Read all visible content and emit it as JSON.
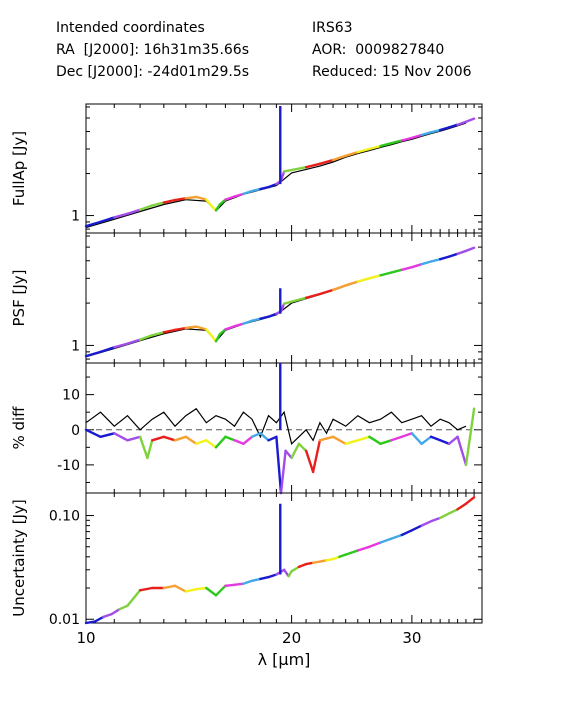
{
  "header": {
    "coords_title": "Intended coordinates",
    "ra": "RA  [J2000]: 16h31m35.66s",
    "dec": "Dec [J2000]: -24d01m29.5s",
    "object": "IRS63",
    "aor": "AOR:  0009827840",
    "reduced": "Reduced: 15 Nov 2006"
  },
  "chart_data": {
    "type": "line",
    "xlabel": "λ [μm]",
    "x_scale": "log",
    "xlim": [
      10,
      38
    ],
    "x_ticks": [
      10,
      20,
      30
    ],
    "x_tick_labels": [
      "10",
      "20",
      "30"
    ],
    "segment_colors": [
      "#1a1ad0",
      "#a24de8",
      "#7fd23c",
      "#e8201c",
      "#f5a030",
      "#f2f21c",
      "#2cc81c",
      "#e838e0",
      "#42a8e8"
    ],
    "panels": [
      {
        "name": "fullap",
        "ylabel": "FullAp [Jy]",
        "y_scale": "log",
        "ylim": [
          0.75,
          6.3
        ],
        "y_ticks": [
          1
        ],
        "y_tick_labels": [
          "1"
        ],
        "reference_line": false,
        "spectrum": {
          "x": [
            10.0,
            10.5,
            11.0,
            11.5,
            12.0,
            12.5,
            13.0,
            13.5,
            14.0,
            14.5,
            15.0,
            15.3,
            15.5,
            15.7,
            16.0,
            16.5,
            17.0,
            17.5,
            18.0,
            18.5,
            19.0,
            19.3,
            19.5,
            20.0,
            21.0,
            22.0,
            23.0,
            24.0,
            25.0,
            26.0,
            27.0,
            28.0,
            29.0,
            30.0,
            31.0,
            32.0,
            33.0,
            34.0,
            35.0,
            36.0,
            37.0
          ],
          "y": [
            0.84,
            0.9,
            0.97,
            1.03,
            1.1,
            1.18,
            1.24,
            1.29,
            1.33,
            1.36,
            1.3,
            1.16,
            1.09,
            1.2,
            1.3,
            1.37,
            1.43,
            1.5,
            1.55,
            1.6,
            1.68,
            1.78,
            2.07,
            2.12,
            2.22,
            2.35,
            2.5,
            2.68,
            2.85,
            3.0,
            3.15,
            3.3,
            3.45,
            3.6,
            3.78,
            3.95,
            4.1,
            4.28,
            4.48,
            4.7,
            4.95
          ]
        },
        "spike": {
          "x": 19.25,
          "y": 6.1
        },
        "comparison": {
          "x": [
            10.0,
            11.0,
            12.0,
            13.0,
            14.0,
            15.0,
            15.5,
            16.0,
            17.0,
            18.0,
            19.0,
            20.0,
            21.0,
            22.0,
            23.0,
            24.0,
            25.0,
            26.0,
            27.0,
            28.0,
            29.0,
            30.0,
            31.0,
            32.0,
            33.0,
            34.0,
            35.0,
            36.0
          ],
          "y": [
            0.82,
            0.94,
            1.07,
            1.2,
            1.3,
            1.27,
            1.08,
            1.27,
            1.42,
            1.53,
            1.64,
            2.02,
            2.14,
            2.26,
            2.42,
            2.62,
            2.78,
            2.92,
            3.08,
            3.22,
            3.38,
            3.52,
            3.7,
            3.87,
            4.02,
            4.2,
            4.4,
            4.6
          ]
        }
      },
      {
        "name": "psf",
        "ylabel": "PSF [Jy]",
        "y_scale": "log",
        "ylim": [
          0.75,
          6.3
        ],
        "y_ticks": [
          1
        ],
        "y_tick_labels": [
          "1"
        ],
        "reference_line": false,
        "spectrum": {
          "x": [
            10.0,
            10.5,
            11.0,
            11.5,
            12.0,
            12.5,
            13.0,
            13.5,
            14.0,
            14.5,
            15.0,
            15.3,
            15.5,
            15.7,
            16.0,
            16.5,
            17.0,
            17.5,
            18.0,
            18.5,
            19.0,
            19.3,
            19.5,
            20.0,
            21.0,
            22.0,
            23.0,
            24.0,
            25.0,
            26.0,
            27.0,
            28.0,
            29.0,
            30.0,
            31.0,
            32.0,
            33.0,
            34.0,
            35.0,
            36.0,
            37.0
          ],
          "y": [
            0.84,
            0.9,
            0.97,
            1.03,
            1.1,
            1.18,
            1.24,
            1.29,
            1.33,
            1.36,
            1.3,
            1.16,
            1.07,
            1.2,
            1.3,
            1.37,
            1.43,
            1.5,
            1.55,
            1.6,
            1.68,
            1.75,
            1.98,
            2.05,
            2.18,
            2.32,
            2.48,
            2.67,
            2.85,
            3.0,
            3.15,
            3.3,
            3.45,
            3.6,
            3.78,
            3.95,
            4.1,
            4.28,
            4.48,
            4.7,
            4.95
          ]
        },
        "spike": {
          "x": 19.25,
          "y": 2.55
        },
        "comparison": {
          "x": [
            10.0,
            11.0,
            12.0,
            13.0,
            14.0,
            15.0,
            15.5,
            16.0,
            17.0,
            18.0,
            19.0,
            20.0,
            21.0,
            22.0,
            23.0,
            24.0,
            25.0,
            26.0,
            27.0,
            28.0,
            29.0,
            30.0,
            31.0,
            32.0,
            33.0,
            34.0,
            35.0,
            36.0
          ],
          "y": [
            0.83,
            0.95,
            1.08,
            1.21,
            1.31,
            1.28,
            1.07,
            1.28,
            1.42,
            1.53,
            1.65,
            2.0,
            2.15,
            2.3,
            2.46,
            2.65,
            2.82,
            2.98,
            3.13,
            3.28,
            3.43,
            3.58,
            3.76,
            3.93,
            4.08,
            4.26,
            4.45,
            4.66
          ]
        }
      },
      {
        "name": "diff",
        "ylabel": "% diff",
        "y_scale": "linear",
        "ylim": [
          -18,
          19
        ],
        "y_ticks": [
          10,
          0,
          -10
        ],
        "y_tick_labels": [
          "10",
          "0",
          "-10"
        ],
        "reference_line": true,
        "spectrum": {
          "x": [
            10.0,
            10.5,
            11.0,
            11.5,
            12.0,
            12.3,
            12.5,
            13.0,
            13.5,
            14.0,
            14.5,
            15.0,
            15.5,
            16.0,
            16.5,
            17.0,
            17.5,
            18.0,
            18.5,
            19.0,
            19.3,
            19.6,
            20.0,
            20.5,
            21.0,
            21.5,
            22.0,
            23.0,
            24.0,
            25.0,
            26.0,
            27.0,
            28.0,
            29.0,
            30.0,
            31.0,
            32.0,
            33.0,
            34.0,
            35.0,
            36.0,
            37.0
          ],
          "y": [
            0,
            -2,
            -1,
            -3,
            -2,
            -8,
            -3,
            -2,
            -3,
            -2,
            -4,
            -3,
            -5,
            -2,
            -3,
            -4,
            -2,
            -1,
            -3,
            -2,
            -18,
            -6,
            -8,
            -4,
            -6,
            -12,
            -3,
            -2,
            -4,
            -3,
            -2,
            -4,
            -3,
            -2,
            -1,
            -4,
            -2,
            -3,
            -4,
            -2,
            -10,
            6
          ]
        },
        "spike": {
          "x": 19.25,
          "y": 19
        },
        "comparison": {
          "x": [
            10.0,
            10.5,
            11.0,
            11.5,
            12.0,
            12.5,
            13.0,
            13.5,
            14.0,
            14.5,
            15.0,
            15.5,
            16.0,
            16.5,
            17.0,
            17.5,
            18.0,
            18.5,
            19.0,
            19.5,
            20.0,
            20.5,
            21.0,
            21.5,
            22.0,
            22.5,
            23.0,
            24.0,
            25.0,
            26.0,
            27.0,
            28.0,
            29.0,
            30.0,
            31.0,
            32.0,
            33.0,
            34.0,
            35.0,
            36.0
          ],
          "y": [
            2,
            5,
            1,
            4,
            0,
            3,
            5,
            1,
            4,
            6,
            2,
            4,
            3,
            1,
            5,
            3,
            -2,
            4,
            2,
            5,
            -4,
            -2,
            0,
            -3,
            2,
            -1,
            3,
            1,
            4,
            2,
            3,
            5,
            2,
            3,
            4,
            1,
            3,
            2,
            0,
            1
          ]
        }
      },
      {
        "name": "uncertainty",
        "ylabel": "Uncertainty [Jy]",
        "y_scale": "log",
        "ylim": [
          0.0092,
          0.165
        ],
        "y_ticks": [
          0.1,
          0.01
        ],
        "y_tick_labels": [
          "0.10",
          "0.01"
        ],
        "reference_line": false,
        "spectrum": {
          "x": [
            10.0,
            10.3,
            10.6,
            10.9,
            11.2,
            11.5,
            12.0,
            12.5,
            13.0,
            13.5,
            14.0,
            14.5,
            15.0,
            15.5,
            16.0,
            16.5,
            17.0,
            17.5,
            18.0,
            18.5,
            19.0,
            19.5,
            19.8,
            20.0,
            20.5,
            21.0,
            21.5,
            22.0,
            22.5,
            23.0,
            23.5,
            24.0,
            25.0,
            26.0,
            27.0,
            28.0,
            29.0,
            30.0,
            31.0,
            32.0,
            33.0,
            34.0,
            35.0,
            36.0,
            37.0
          ],
          "y": [
            0.0092,
            0.0095,
            0.0105,
            0.0112,
            0.0125,
            0.0135,
            0.019,
            0.02,
            0.02,
            0.021,
            0.0185,
            0.0195,
            0.02,
            0.017,
            0.021,
            0.0215,
            0.022,
            0.0235,
            0.0245,
            0.0255,
            0.027,
            0.03,
            0.026,
            0.029,
            0.032,
            0.034,
            0.035,
            0.036,
            0.037,
            0.038,
            0.04,
            0.042,
            0.046,
            0.05,
            0.055,
            0.06,
            0.065,
            0.072,
            0.08,
            0.088,
            0.095,
            0.105,
            0.115,
            0.13,
            0.15
          ]
        },
        "spike": {
          "x": 19.25,
          "y": 0.13
        },
        "comparison": null
      }
    ]
  }
}
